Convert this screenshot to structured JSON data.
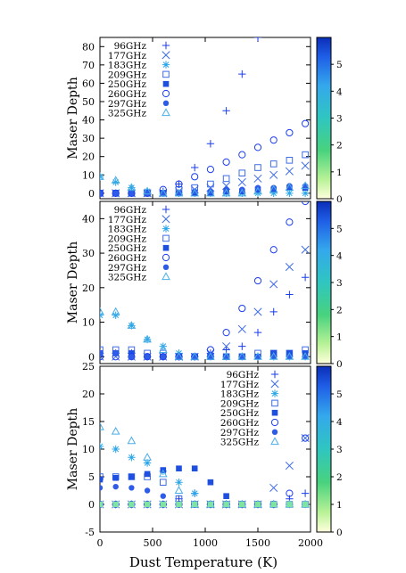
{
  "figure": {
    "xlabel": "Dust Temperature (K)",
    "ylabel": "Maser Depth"
  },
  "chart_data": [
    {
      "type": "scatter",
      "xlabel": "Dust Temperature (K)",
      "ylabel": "Maser Depth",
      "xlim": [
        0,
        2000
      ],
      "ylim": [
        -3,
        85
      ],
      "yticks": [
        0,
        10,
        20,
        30,
        40,
        50,
        60,
        70,
        80
      ],
      "xticks": [
        0,
        500,
        1000,
        1500,
        2000
      ],
      "show_xticklabels": false,
      "legend_placement": "top-left",
      "colorbar": {
        "range": [
          0,
          6
        ],
        "ticks": [
          0,
          1,
          2,
          3,
          4,
          5
        ]
      },
      "series": [
        {
          "name": "96GHz",
          "marker": "plus",
          "color": "#1a3df0",
          "x": [
            0,
            150,
            300,
            450,
            600,
            750,
            900,
            1050,
            1200,
            1350,
            1500
          ],
          "y": [
            0,
            0,
            0,
            0,
            1,
            5,
            14,
            27,
            45,
            65,
            85
          ]
        },
        {
          "name": "177GHz",
          "marker": "cross",
          "color": "#3f6ce6",
          "x": [
            0,
            150,
            300,
            450,
            600,
            750,
            900,
            1050,
            1200,
            1350,
            1500,
            1650,
            1800,
            1950
          ],
          "y": [
            0,
            0,
            0,
            0,
            0,
            1,
            2,
            3,
            4,
            6,
            8,
            10,
            12,
            15
          ]
        },
        {
          "name": "183GHz",
          "marker": "asterisk",
          "color": "#2aa6e8",
          "x": [
            0,
            150,
            300,
            450,
            600,
            750,
            900,
            1050,
            1200,
            1350,
            1500,
            1650,
            1800,
            1950
          ],
          "y": [
            9,
            6,
            3,
            1,
            0,
            0,
            0,
            0,
            0,
            0,
            0,
            0,
            0,
            0
          ]
        },
        {
          "name": "209GHz",
          "marker": "square-open",
          "color": "#3f6ce6",
          "x": [
            0,
            150,
            300,
            450,
            600,
            750,
            900,
            1050,
            1200,
            1350,
            1500,
            1650,
            1800,
            1950
          ],
          "y": [
            0,
            0,
            0,
            0,
            0,
            2,
            3,
            5,
            8,
            11,
            14,
            16,
            18,
            21
          ]
        },
        {
          "name": "250GHz",
          "marker": "square",
          "color": "#1e4fe0",
          "x": [
            0,
            150,
            300,
            450,
            600,
            750,
            900,
            1050,
            1200,
            1350,
            1500,
            1650,
            1800,
            1950
          ],
          "y": [
            0,
            0,
            0,
            0,
            0,
            0,
            0,
            0,
            1,
            1,
            2,
            2,
            3,
            3
          ]
        },
        {
          "name": "260GHz",
          "marker": "circle-open",
          "color": "#1a3df0",
          "x": [
            0,
            150,
            300,
            450,
            600,
            750,
            900,
            1050,
            1200,
            1350,
            1500,
            1650,
            1800,
            1950
          ],
          "y": [
            0,
            0,
            0,
            0,
            2,
            5,
            9,
            13,
            17,
            21,
            25,
            29,
            33,
            38
          ]
        },
        {
          "name": "297GHz",
          "marker": "circle",
          "color": "#2e5ce8",
          "x": [
            0,
            150,
            300,
            450,
            600,
            750,
            900,
            1050,
            1200,
            1350,
            1500,
            1650,
            1800,
            1950
          ],
          "y": [
            0,
            0,
            0,
            0,
            0,
            0,
            1,
            1,
            2,
            2,
            3,
            3,
            4,
            4
          ]
        },
        {
          "name": "325GHz",
          "marker": "triangle-open",
          "color": "#4aaee6",
          "x": [
            0,
            150,
            300,
            450,
            600,
            750,
            900,
            1050,
            1200,
            1350,
            1500,
            1650,
            1800,
            1950
          ],
          "y": [
            9,
            7,
            3,
            1,
            0,
            0,
            0,
            0,
            0,
            0,
            1,
            2,
            3,
            4
          ]
        }
      ]
    },
    {
      "type": "scatter",
      "xlabel": "Dust Temperature (K)",
      "ylabel": "Maser Depth",
      "xlim": [
        0,
        2000
      ],
      "ylim": [
        -2,
        45
      ],
      "yticks": [
        0,
        10,
        20,
        30,
        40
      ],
      "xticks": [
        0,
        500,
        1000,
        1500,
        2000
      ],
      "show_xticklabels": false,
      "legend_placement": "top-left",
      "colorbar": {
        "range": [
          0,
          6
        ],
        "ticks": [
          0,
          1,
          2,
          3,
          4,
          5
        ]
      },
      "series": [
        {
          "name": "96GHz",
          "marker": "plus",
          "color": "#1a3df0",
          "x": [
            0,
            150,
            300,
            450,
            600,
            750,
            900,
            1050,
            1200,
            1350,
            1500,
            1650,
            1800,
            1950
          ],
          "y": [
            1,
            1,
            1,
            0,
            0,
            0,
            0,
            1,
            2,
            3,
            7,
            13,
            18,
            23
          ]
        },
        {
          "name": "177GHz",
          "marker": "cross",
          "color": "#3f6ce6",
          "x": [
            0,
            150,
            300,
            450,
            600,
            750,
            900,
            1050,
            1200,
            1350,
            1500,
            1650,
            1800,
            1950
          ],
          "y": [
            0,
            0,
            0,
            0,
            0,
            0,
            0,
            1,
            3,
            8,
            13,
            21,
            26,
            31
          ]
        },
        {
          "name": "183GHz",
          "marker": "asterisk",
          "color": "#2aa6e8",
          "x": [
            0,
            150,
            300,
            450,
            600,
            750,
            900,
            1050,
            1200,
            1350,
            1500,
            1650,
            1800,
            1950
          ],
          "y": [
            12,
            12,
            9,
            5,
            3,
            1,
            0,
            0,
            0,
            0,
            0,
            0,
            0,
            0
          ]
        },
        {
          "name": "209GHz",
          "marker": "square-open",
          "color": "#3f6ce6",
          "x": [
            0,
            150,
            300,
            450,
            600,
            750,
            900,
            1050,
            1200,
            1350,
            1500,
            1650,
            1800,
            1950
          ],
          "y": [
            2,
            2,
            2,
            1,
            1,
            0,
            0,
            0,
            0,
            0,
            1,
            1,
            1,
            2
          ]
        },
        {
          "name": "250GHz",
          "marker": "square",
          "color": "#1e4fe0",
          "x": [
            0,
            150,
            300,
            450,
            600,
            750,
            900,
            1050,
            1200,
            1350,
            1500,
            1650,
            1800,
            1950
          ],
          "y": [
            1,
            1,
            1,
            0,
            0,
            0,
            0,
            0,
            0,
            0,
            0,
            1,
            1,
            1
          ]
        },
        {
          "name": "260GHz",
          "marker": "circle-open",
          "color": "#1a3df0",
          "x": [
            0,
            150,
            300,
            450,
            600,
            750,
            900,
            1050,
            1200,
            1350,
            1500,
            1650,
            1800,
            1950
          ],
          "y": [
            0,
            0,
            0,
            0,
            0,
            0,
            0,
            2,
            7,
            14,
            22,
            31,
            39,
            45
          ]
        },
        {
          "name": "297GHz",
          "marker": "circle",
          "color": "#2e5ce8",
          "x": [
            0,
            150,
            300,
            450,
            600,
            750,
            900,
            1050,
            1200,
            1350,
            1500,
            1650,
            1800,
            1950
          ],
          "y": [
            1,
            1,
            0,
            0,
            0,
            0,
            0,
            0,
            0,
            0,
            0,
            0,
            0,
            0
          ]
        },
        {
          "name": "325GHz",
          "marker": "triangle-open",
          "color": "#4aaee6",
          "x": [
            0,
            150,
            300,
            450,
            600,
            750,
            900,
            1050,
            1200,
            1350,
            1500,
            1650,
            1800,
            1950
          ],
          "y": [
            13,
            13,
            9,
            5,
            2,
            0,
            0,
            0,
            0,
            0,
            0,
            0,
            0,
            0
          ]
        }
      ]
    },
    {
      "type": "scatter",
      "xlabel": "Dust Temperature (K)",
      "ylabel": "Maser Depth",
      "xlim": [
        0,
        2000
      ],
      "ylim": [
        -5,
        25
      ],
      "yticks": [
        -5,
        0,
        5,
        10,
        15,
        20,
        25
      ],
      "xticks": [
        0,
        500,
        1000,
        1500,
        2000
      ],
      "show_xticklabels": true,
      "legend_placement": "top-right",
      "colorbar": {
        "range": [
          0,
          6
        ],
        "ticks": [
          0,
          1,
          2,
          3,
          4,
          5
        ]
      },
      "series": [
        {
          "name": "96GHz",
          "marker": "plus",
          "color": "#1a3df0",
          "x": [
            0,
            150,
            300,
            450,
            600,
            750,
            900,
            1050,
            1200,
            1350,
            1500,
            1650,
            1800,
            1950
          ],
          "y": [
            0,
            0,
            0,
            0,
            0,
            1,
            2,
            0,
            0,
            0,
            0,
            0,
            1,
            2
          ]
        },
        {
          "name": "177GHz",
          "marker": "cross",
          "color": "#3f6ce6",
          "x": [
            0,
            150,
            300,
            450,
            600,
            750,
            900,
            1050,
            1200,
            1350,
            1500,
            1650,
            1800,
            1950
          ],
          "y": [
            0,
            0,
            0,
            0,
            0,
            0,
            0,
            0,
            0,
            0,
            0,
            3,
            7,
            12
          ]
        },
        {
          "name": "183GHz",
          "marker": "asterisk",
          "color": "#2aa6e8",
          "x": [
            0,
            150,
            300,
            450,
            600,
            750,
            900,
            1050,
            1200,
            1350,
            1500,
            1650,
            1800,
            1950
          ],
          "y": [
            10.5,
            10,
            8.5,
            7.5,
            6,
            4,
            2,
            0,
            0,
            0,
            0,
            0,
            0,
            0
          ]
        },
        {
          "name": "209GHz",
          "marker": "square-open",
          "color": "#3f6ce6",
          "x": [
            0,
            150,
            300,
            450,
            600,
            750,
            900,
            1050,
            1200,
            1350,
            1500,
            1650,
            1800,
            1950
          ],
          "y": [
            5,
            5,
            5,
            5,
            4,
            1,
            0,
            0,
            0,
            0,
            0,
            0,
            0,
            0
          ]
        },
        {
          "name": "250GHz",
          "marker": "square",
          "color": "#1e4fe0",
          "x": [
            0,
            150,
            300,
            450,
            600,
            750,
            900,
            1050,
            1200,
            1350,
            1500,
            1650,
            1800,
            1950
          ],
          "y": [
            4.5,
            4.8,
            5,
            5.5,
            6.2,
            6.5,
            6.5,
            4,
            1.5,
            0,
            0,
            0,
            0,
            0
          ]
        },
        {
          "name": "260GHz",
          "marker": "circle-open",
          "color": "#1a3df0",
          "x": [
            0,
            150,
            300,
            450,
            600,
            750,
            900,
            1050,
            1200,
            1350,
            1500,
            1650,
            1800,
            1950
          ],
          "y": [
            0,
            0,
            0,
            0,
            0,
            0,
            0,
            0,
            0,
            0,
            0,
            0,
            2,
            12
          ]
        },
        {
          "name": "297GHz",
          "marker": "circle",
          "color": "#2e5ce8",
          "x": [
            0,
            150,
            300,
            450,
            600,
            750,
            900,
            1050,
            1200,
            1350,
            1500,
            1650,
            1800,
            1950
          ],
          "y": [
            3,
            3.2,
            3,
            2.5,
            1.5,
            0,
            0,
            0,
            0,
            0,
            0,
            0,
            0,
            0
          ]
        },
        {
          "name": "325GHz",
          "marker": "triangle-open",
          "color": "#4aaee6",
          "x": [
            0,
            150,
            300,
            450,
            600,
            750,
            900,
            1050,
            1200,
            1350,
            1500,
            1650,
            1800,
            1950
          ],
          "y": [
            14,
            13.2,
            11.5,
            8.5,
            5.5,
            2.5,
            0,
            0,
            0,
            0,
            0,
            0,
            0,
            0
          ]
        },
        {
          "name": "",
          "marker": "square",
          "color": "#7fe3a1",
          "x": [
            0,
            150,
            300,
            450,
            600,
            750,
            900,
            1050,
            1200,
            1350,
            1500,
            1650,
            1800,
            1950
          ],
          "y": [
            0,
            0,
            0,
            0,
            0,
            0,
            0,
            0,
            0,
            0,
            0,
            0,
            0,
            0
          ]
        }
      ]
    }
  ]
}
